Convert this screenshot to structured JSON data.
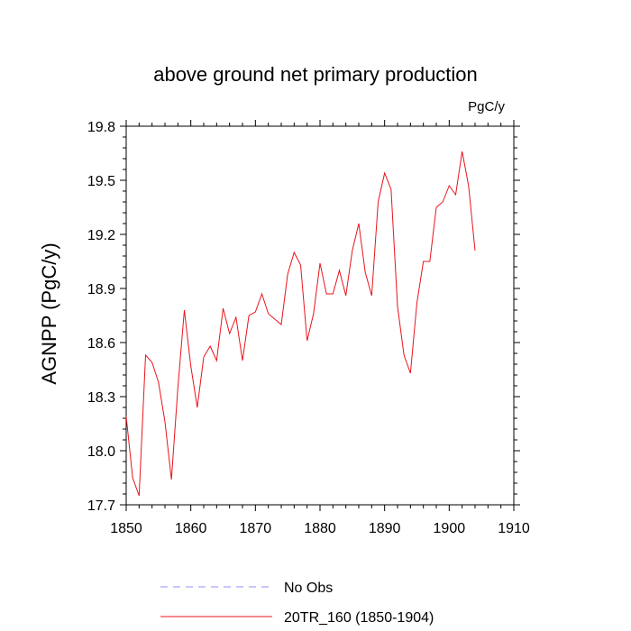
{
  "chart_data": {
    "type": "line",
    "title": "above ground net primary production",
    "units": "PgC/y",
    "xlabel": "",
    "ylabel": "AGNPP  (PgC/y)",
    "xlim": [
      1850,
      1910
    ],
    "ylim": [
      17.7,
      19.8
    ],
    "x_ticks": [
      1850,
      1860,
      1870,
      1880,
      1890,
      1900,
      1910
    ],
    "y_ticks": [
      "17.7",
      "18.0",
      "18.3",
      "18.6",
      "18.9",
      "19.2",
      "19.5",
      "19.8"
    ],
    "grid": false,
    "legend_position": "bottom",
    "series": [
      {
        "name": "No Obs",
        "color": "#8c8cff",
        "dash": "dashed",
        "x": [],
        "values": []
      },
      {
        "name": "20TR_160 (1850-1904)",
        "color": "#e8141c",
        "dash": "solid",
        "x": [
          1850,
          1851,
          1852,
          1853,
          1854,
          1855,
          1856,
          1857,
          1858,
          1859,
          1860,
          1861,
          1862,
          1863,
          1864,
          1865,
          1866,
          1867,
          1868,
          1869,
          1870,
          1871,
          1872,
          1873,
          1874,
          1875,
          1876,
          1877,
          1878,
          1879,
          1880,
          1881,
          1882,
          1883,
          1884,
          1885,
          1886,
          1887,
          1888,
          1889,
          1890,
          1891,
          1892,
          1893,
          1894,
          1895,
          1896,
          1897,
          1898,
          1899,
          1900,
          1901,
          1902,
          1903,
          1904
        ],
        "values": [
          18.19,
          17.85,
          17.75,
          18.53,
          18.49,
          18.38,
          18.16,
          17.84,
          18.35,
          18.78,
          18.47,
          18.24,
          18.52,
          18.58,
          18.5,
          18.79,
          18.65,
          18.74,
          18.5,
          18.75,
          18.77,
          18.87,
          18.76,
          18.73,
          18.7,
          18.98,
          19.1,
          19.03,
          18.61,
          18.76,
          19.04,
          18.87,
          18.87,
          19.0,
          18.86,
          19.11,
          19.26,
          18.99,
          18.86,
          19.38,
          19.54,
          19.45,
          18.8,
          18.53,
          18.43,
          18.82,
          19.05,
          19.05,
          19.35,
          19.38,
          19.47,
          19.42,
          19.66,
          19.47,
          19.11
        ]
      }
    ]
  }
}
